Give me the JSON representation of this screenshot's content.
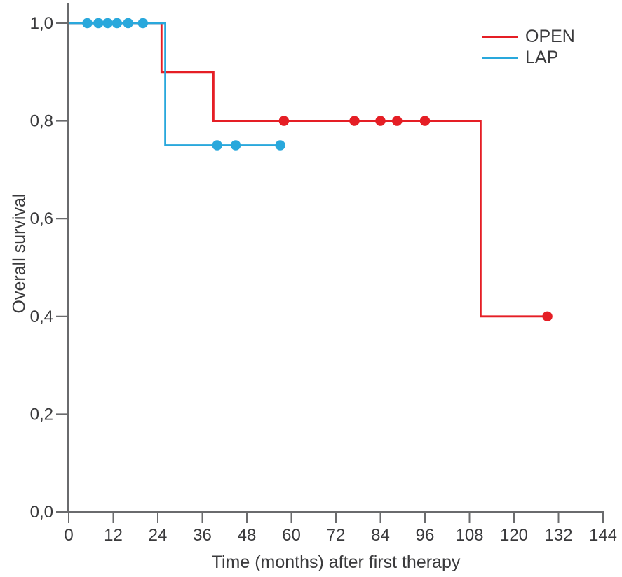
{
  "chart_data": {
    "type": "line",
    "subtype": "kaplan-meier-step",
    "title": "",
    "xlabel": "Time (months) after first therapy",
    "ylabel": "Overall survival",
    "xlim": [
      0,
      144
    ],
    "ylim": [
      0.0,
      1.0
    ],
    "x_ticks": [
      0,
      12,
      24,
      36,
      48,
      60,
      72,
      84,
      96,
      108,
      120,
      132,
      144
    ],
    "x_tick_labels": [
      "0",
      "12",
      "24",
      "36",
      "48",
      "60",
      "72",
      "84",
      "96",
      "108",
      "120",
      "132",
      "144"
    ],
    "y_ticks": [
      0.0,
      0.2,
      0.4,
      0.6,
      0.8,
      1.0
    ],
    "y_tick_labels": [
      "0,0",
      "0,2",
      "0,4",
      "0,6",
      "0,8",
      "1,0"
    ],
    "decimal_separator": ",",
    "grid": false,
    "legend_position": "top-right",
    "axis_color": "#6a6b6d",
    "tick_text_color": "#3a3a3c",
    "series": [
      {
        "name": "OPEN",
        "color": "#e51e25",
        "steps": [
          [
            0,
            1.0
          ],
          [
            25,
            1.0
          ],
          [
            25,
            0.9
          ],
          [
            39,
            0.9
          ],
          [
            39,
            0.8
          ],
          [
            111,
            0.8
          ],
          [
            111,
            0.4
          ],
          [
            129,
            0.4
          ]
        ],
        "censor_marks": [
          [
            58,
            0.8
          ],
          [
            77,
            0.8
          ],
          [
            84,
            0.8
          ],
          [
            88.5,
            0.8
          ],
          [
            96,
            0.8
          ],
          [
            129,
            0.4
          ]
        ]
      },
      {
        "name": "LAP",
        "color": "#29a8dc",
        "steps": [
          [
            0,
            1.0
          ],
          [
            26,
            1.0
          ],
          [
            26,
            0.75
          ],
          [
            57,
            0.75
          ]
        ],
        "censor_marks": [
          [
            5,
            1.0
          ],
          [
            8,
            1.0
          ],
          [
            10.5,
            1.0
          ],
          [
            13,
            1.0
          ],
          [
            16,
            1.0
          ],
          [
            20,
            1.0
          ],
          [
            40,
            0.75
          ],
          [
            45,
            0.75
          ],
          [
            57,
            0.75
          ]
        ]
      }
    ]
  }
}
